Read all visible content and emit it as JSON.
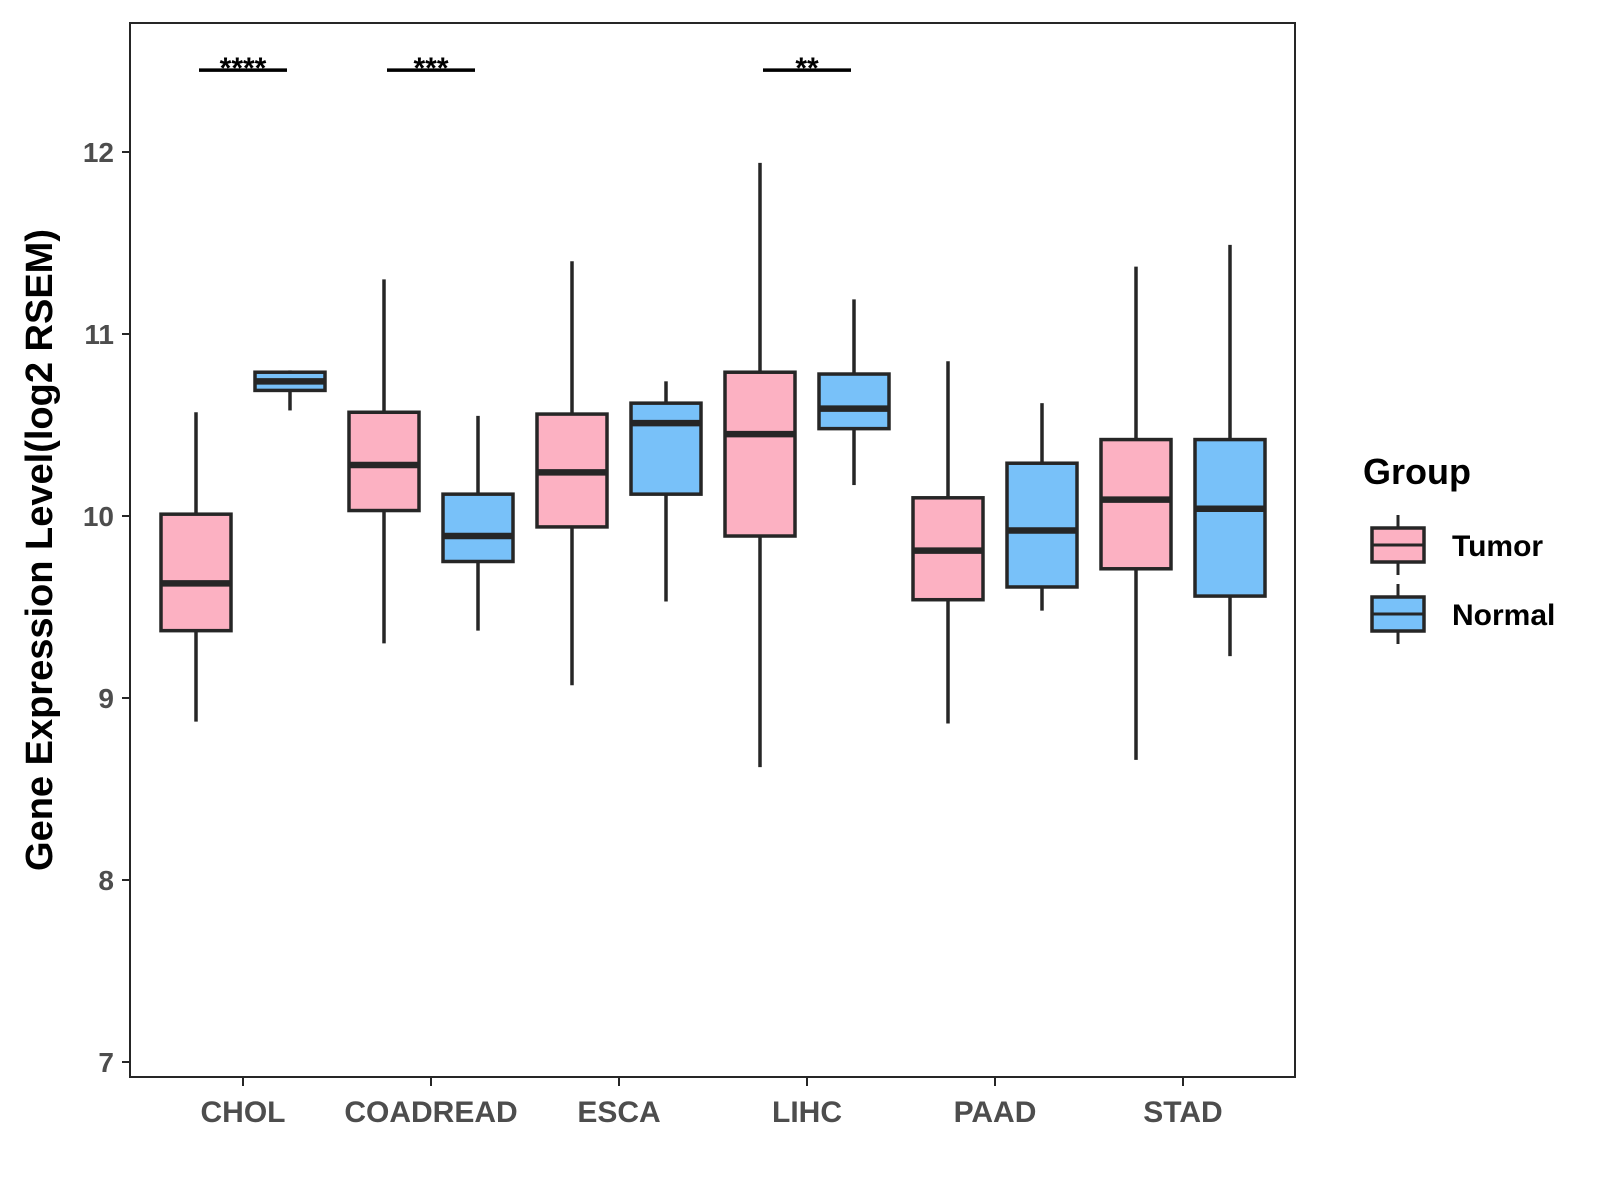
{
  "chart_data": {
    "type": "boxplot",
    "title": "",
    "xlabel": "",
    "ylabel": "Gene Expression Level(log2 RSEM)",
    "ylim": [
      6.95,
      12.7
    ],
    "yticks": [
      7,
      8,
      9,
      10,
      11,
      12
    ],
    "grid": false,
    "categories": [
      "CHOL",
      "COADREAD",
      "ESCA",
      "LIHC",
      "PAAD",
      "STAD"
    ],
    "legend": {
      "title": "Group",
      "position": "right",
      "entries": [
        "Tumor",
        "Normal"
      ]
    },
    "colors": {
      "Tumor": "#fcb1c2",
      "Normal": "#78c1f9",
      "outline": "#262626",
      "axis": "#262626"
    },
    "series": [
      {
        "name": "Tumor",
        "boxes": [
          {
            "min": 8.87,
            "q1": 9.37,
            "median": 9.63,
            "q3": 10.01,
            "max": 10.57
          },
          {
            "min": 9.3,
            "q1": 10.03,
            "median": 10.28,
            "q3": 10.57,
            "max": 11.3
          },
          {
            "min": 9.07,
            "q1": 9.94,
            "median": 10.24,
            "q3": 10.56,
            "max": 11.4
          },
          {
            "min": 8.62,
            "q1": 9.89,
            "median": 10.45,
            "q3": 10.79,
            "max": 11.94
          },
          {
            "min": 8.86,
            "q1": 9.54,
            "median": 9.81,
            "q3": 10.1,
            "max": 10.85
          },
          {
            "min": 8.66,
            "q1": 9.71,
            "median": 10.09,
            "q3": 10.42,
            "max": 11.37
          }
        ]
      },
      {
        "name": "Normal",
        "boxes": [
          {
            "min": 10.58,
            "q1": 10.69,
            "median": 10.74,
            "q3": 10.79,
            "max": 10.8
          },
          {
            "min": 9.37,
            "q1": 9.75,
            "median": 9.89,
            "q3": 10.12,
            "max": 10.55
          },
          {
            "min": 9.53,
            "q1": 10.12,
            "median": 10.51,
            "q3": 10.62,
            "max": 10.74
          },
          {
            "min": 10.17,
            "q1": 10.48,
            "median": 10.59,
            "q3": 10.78,
            "max": 11.19
          },
          {
            "min": 9.48,
            "q1": 9.61,
            "median": 9.92,
            "q3": 10.29,
            "max": 10.62
          },
          {
            "min": 9.23,
            "q1": 9.56,
            "median": 10.04,
            "q3": 10.42,
            "max": 11.49
          }
        ]
      }
    ],
    "annotations": [
      {
        "category": "CHOL",
        "label": "****",
        "y": 12.45
      },
      {
        "category": "COADREAD",
        "label": "***",
        "y": 12.45
      },
      {
        "category": "LIHC",
        "label": "**",
        "y": 12.45
      }
    ]
  }
}
